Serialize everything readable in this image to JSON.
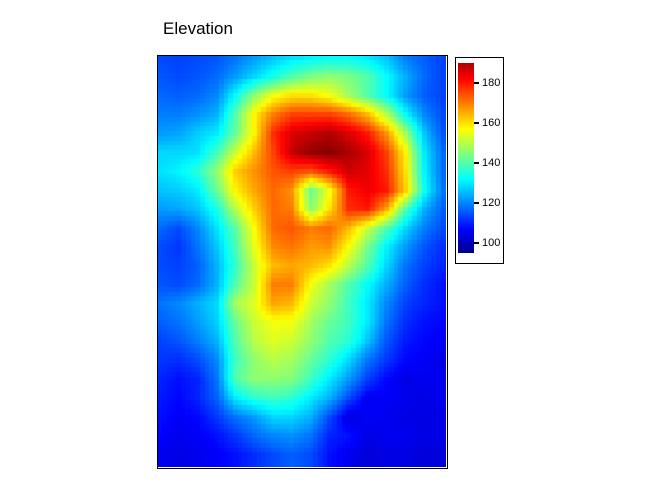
{
  "window": {
    "background_color": "#ffffff",
    "text_color": "#000000",
    "frame_border_color": "#000000"
  },
  "chart_data": {
    "type": "heatmap",
    "title": "Elevation",
    "legend_position": "right",
    "grid_on": false,
    "axes_visible": false,
    "value_range": [
      94,
      195
    ],
    "grid": {
      "ncols": 61,
      "nrows": 87,
      "sample_step": 4,
      "values": [
        [
          114,
          113,
          114,
          115,
          118,
          122,
          126,
          129,
          131,
          132,
          132,
          130,
          126,
          119,
          116,
          113
        ],
        [
          115,
          114,
          115,
          117,
          122,
          128,
          134,
          140,
          144,
          146,
          144,
          140,
          132,
          124,
          117,
          113
        ],
        [
          117,
          116,
          117,
          120,
          132,
          146,
          156,
          160,
          160,
          156,
          148,
          140,
          132,
          122,
          116,
          113
        ],
        [
          119,
          119,
          121,
          124,
          140,
          158,
          170,
          176,
          176,
          176,
          172,
          164,
          150,
          132,
          120,
          114
        ],
        [
          122,
          123,
          127,
          130,
          142,
          158,
          178,
          186,
          188,
          190,
          186,
          180,
          168,
          148,
          126,
          115
        ],
        [
          128,
          128,
          129,
          138,
          152,
          164,
          176,
          188,
          193,
          194,
          191,
          186,
          176,
          158,
          130,
          117
        ],
        [
          129,
          131,
          136,
          146,
          162,
          168,
          174,
          176,
          174,
          180,
          187,
          185,
          178,
          160,
          131,
          117
        ],
        [
          126,
          127,
          130,
          142,
          158,
          166,
          172,
          168,
          142,
          156,
          180,
          184,
          180,
          162,
          133,
          118
        ],
        [
          122,
          123,
          126,
          134,
          150,
          162,
          172,
          170,
          145,
          160,
          178,
          180,
          166,
          140,
          124,
          116
        ],
        [
          117,
          114,
          120,
          129,
          141,
          157,
          172,
          174,
          170,
          172,
          164,
          152,
          140,
          128,
          119,
          114
        ],
        [
          114,
          112,
          118,
          126,
          139,
          155,
          169,
          171,
          167,
          168,
          157,
          144,
          131,
          122,
          115,
          111
        ],
        [
          114,
          113,
          116,
          124,
          137,
          152,
          164,
          166,
          164,
          160,
          150,
          140,
          128,
          118,
          113,
          110
        ],
        [
          115,
          114,
          117,
          124,
          140,
          152,
          170,
          170,
          156,
          148,
          140,
          132,
          124,
          116,
          111,
          108
        ],
        [
          118,
          120,
          124,
          128,
          148,
          154,
          166,
          164,
          152,
          146,
          138,
          130,
          120,
          113,
          110,
          108
        ],
        [
          116,
          118,
          122,
          127,
          142,
          152,
          156,
          156,
          148,
          142,
          138,
          130,
          118,
          111,
          108,
          107
        ],
        [
          113,
          115,
          119,
          124,
          140,
          150,
          154,
          152,
          146,
          140,
          136,
          126,
          115,
          109,
          107,
          106
        ],
        [
          112,
          111,
          114,
          120,
          138,
          146,
          150,
          148,
          142,
          136,
          128,
          118,
          112,
          107,
          106,
          104
        ],
        [
          110,
          108,
          110,
          118,
          140,
          146,
          146,
          145,
          138,
          130,
          122,
          113,
          107,
          104,
          105,
          105
        ],
        [
          109,
          107,
          110,
          116,
          130,
          136,
          138,
          136,
          130,
          124,
          114,
          105,
          106,
          105,
          104,
          105
        ],
        [
          108,
          106,
          107,
          112,
          118,
          122,
          128,
          128,
          124,
          114,
          103,
          106,
          105,
          104,
          104,
          104
        ],
        [
          107,
          105,
          106,
          108,
          112,
          117,
          120,
          121,
          118,
          110,
          108,
          104,
          105,
          105,
          104,
          104
        ],
        [
          105,
          104,
          105,
          106,
          108,
          111,
          114,
          116,
          114,
          108,
          105,
          103,
          104,
          104,
          103,
          103
        ]
      ]
    },
    "colormap": {
      "name": "jet",
      "stops": [
        {
          "t": 0.0,
          "color": "#000080"
        },
        {
          "t": 0.125,
          "color": "#0000ff"
        },
        {
          "t": 0.375,
          "color": "#00ffff"
        },
        {
          "t": 0.5,
          "color": "#80ff80"
        },
        {
          "t": 0.625,
          "color": "#ffff00"
        },
        {
          "t": 0.875,
          "color": "#ff0000"
        },
        {
          "t": 1.0,
          "color": "#800000"
        }
      ]
    },
    "colorbar": {
      "ticks": [
        100,
        120,
        140,
        160,
        180
      ],
      "bar_value_range": [
        95,
        190
      ],
      "tick_color": "#000000",
      "label_color": "#000000"
    }
  }
}
